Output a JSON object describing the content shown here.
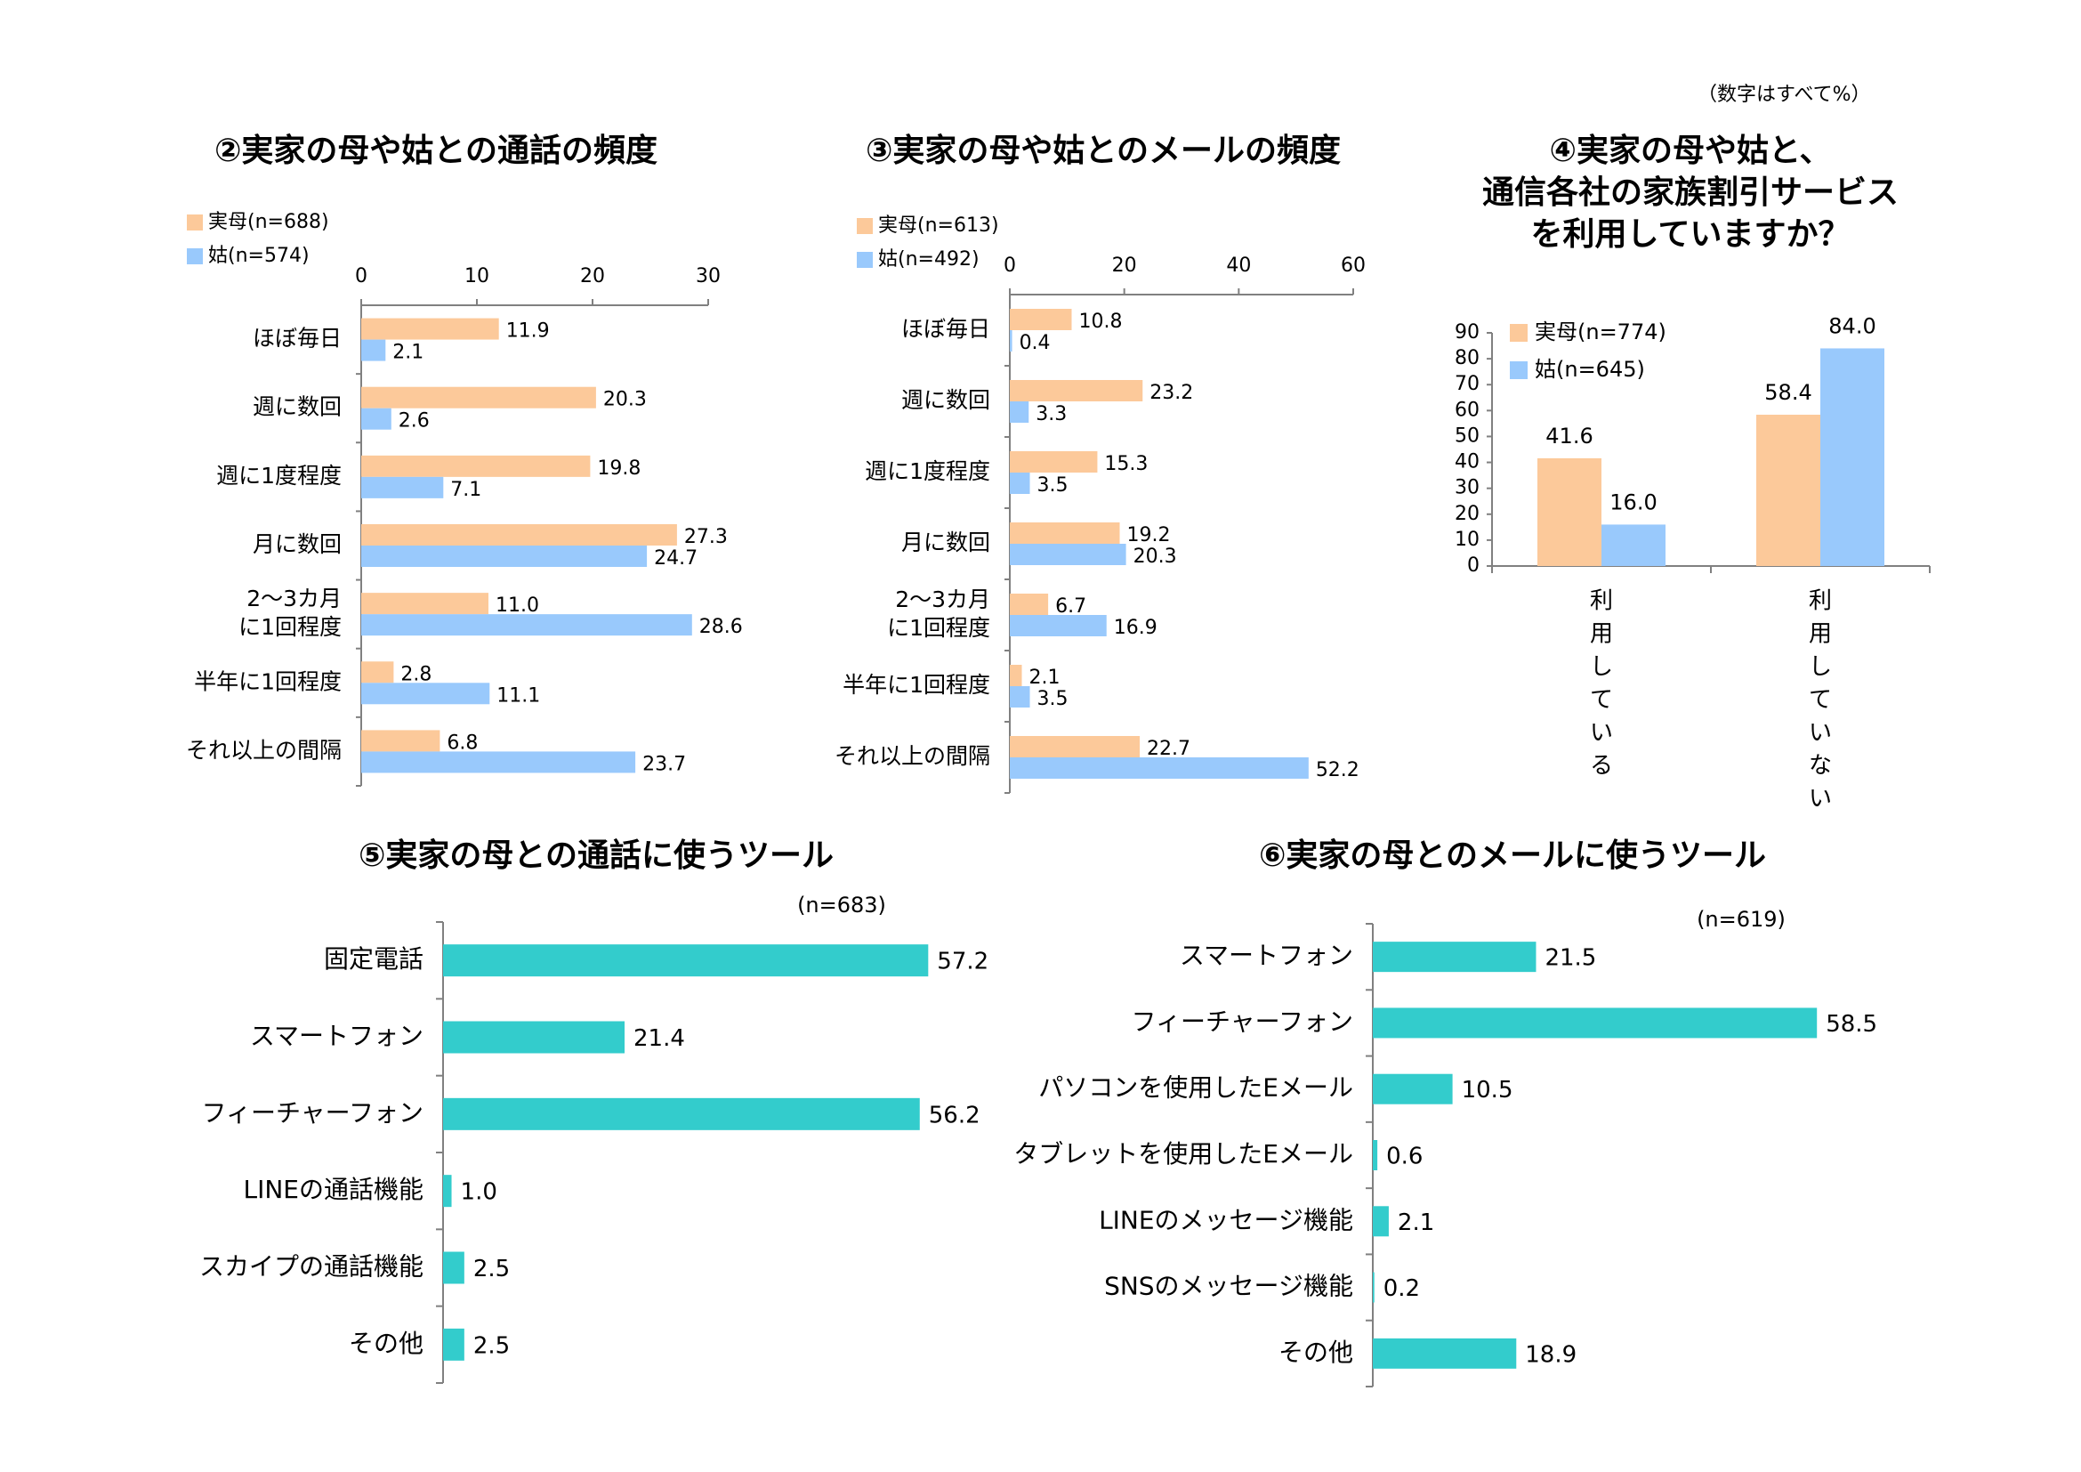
{
  "note": "（数字はすべて%）",
  "colors": {
    "mother": "#fcc99a",
    "motherInLaw": "#99c9fc",
    "teal": "#33cccc",
    "axis": "#808080"
  },
  "chart_data": [
    {
      "id": "c2",
      "type": "bar",
      "orientation": "horizontal",
      "title": "②実家の母や姑との通話の頻度",
      "categories": [
        "ほぼ毎日",
        "週に数回",
        "週に1度程度",
        "月に数回",
        "2～3カ月|に1回程度",
        "半年に1回程度",
        "それ以上の間隔"
      ],
      "xlim": [
        0,
        30
      ],
      "ticks": [
        0,
        10,
        20,
        30
      ],
      "series": [
        {
          "name": "実母(n=688)",
          "values": [
            11.9,
            20.3,
            19.8,
            27.3,
            11.0,
            2.8,
            6.8
          ],
          "labels": [
            "11.9",
            "20.3",
            "19.8",
            "27.3",
            "11.0",
            "2.8",
            "6.8"
          ]
        },
        {
          "name": "姑(n=574)",
          "values": [
            2.1,
            2.6,
            7.1,
            24.7,
            28.6,
            11.1,
            23.7
          ],
          "labels": [
            "2.1",
            "2.6",
            "7.1",
            "24.7",
            "28.6",
            "11.1",
            "23.7"
          ]
        }
      ],
      "legend": "top-left"
    },
    {
      "id": "c3",
      "type": "bar",
      "orientation": "horizontal",
      "title": "③実家の母や姑とのメールの頻度",
      "categories": [
        "ほぼ毎日",
        "週に数回",
        "週に1度程度",
        "月に数回",
        "2～3カ月|に1回程度",
        "半年に1回程度",
        "それ以上の間隔"
      ],
      "xlim": [
        0,
        60
      ],
      "ticks": [
        0,
        20,
        40,
        60
      ],
      "series": [
        {
          "name": "実母(n=613)",
          "values": [
            10.8,
            23.2,
            15.3,
            19.2,
            6.7,
            2.1,
            22.7
          ],
          "labels": [
            "10.8",
            "23.2",
            "15.3",
            "19.2",
            "6.7",
            "2.1",
            "22.7"
          ]
        },
        {
          "name": "姑(n=492)",
          "values": [
            0.4,
            3.3,
            3.5,
            20.3,
            16.9,
            3.5,
            52.2
          ],
          "labels": [
            "0.4",
            "3.3",
            "3.5",
            "20.3",
            "16.9",
            "3.5",
            "52.2"
          ]
        }
      ],
      "legend": "top-left"
    },
    {
      "id": "c4",
      "type": "bar",
      "orientation": "vertical",
      "title": "④実家の母や姑と、|通信各社の家族割引サービス|を利用していますか？",
      "categories": [
        "利用している",
        "利用していない"
      ],
      "ylim": [
        0,
        90
      ],
      "ticks": [
        0,
        10,
        20,
        30,
        40,
        50,
        60,
        70,
        80,
        90
      ],
      "series": [
        {
          "name": "実母(n=774)",
          "values": [
            41.6,
            58.4
          ],
          "labels": [
            "41.6",
            "58.4"
          ]
        },
        {
          "name": "姑(n=645)",
          "values": [
            16.0,
            84.0
          ],
          "labels": [
            "16.0",
            "84.0"
          ]
        }
      ],
      "legend": "top-left"
    },
    {
      "id": "c5",
      "type": "bar",
      "orientation": "horizontal",
      "title": "⑤実家の母との通話に使うツール",
      "n_label": "(n=683)",
      "categories": [
        "固定電話",
        "スマートフォン",
        "フィーチャーフォン",
        "LINEの通話機能",
        "スカイプの通話機能",
        "その他"
      ],
      "xlim": [
        0,
        60
      ],
      "series": [
        {
          "values": [
            57.2,
            21.4,
            56.2,
            1.0,
            2.5,
            2.5
          ],
          "labels": [
            "57.2",
            "21.4",
            "56.2",
            "1.0",
            "2.5",
            "2.5"
          ]
        }
      ]
    },
    {
      "id": "c6",
      "type": "bar",
      "orientation": "horizontal",
      "title": "⑥実家の母とのメールに使うツール",
      "n_label": "(n=619)",
      "categories": [
        "スマートフォン",
        "フィーチャーフォン",
        "パソコンを使用したEメール",
        "タブレットを使用したEメール",
        "LINEのメッセージ機能",
        "SNSのメッセージ機能",
        "その他"
      ],
      "xlim": [
        0,
        60
      ],
      "series": [
        {
          "values": [
            21.5,
            58.5,
            10.5,
            0.6,
            2.1,
            0.2,
            18.9
          ],
          "labels": [
            "21.5",
            "58.5",
            "10.5",
            "0.6",
            "2.1",
            "0.2",
            "18.9"
          ]
        }
      ]
    }
  ]
}
